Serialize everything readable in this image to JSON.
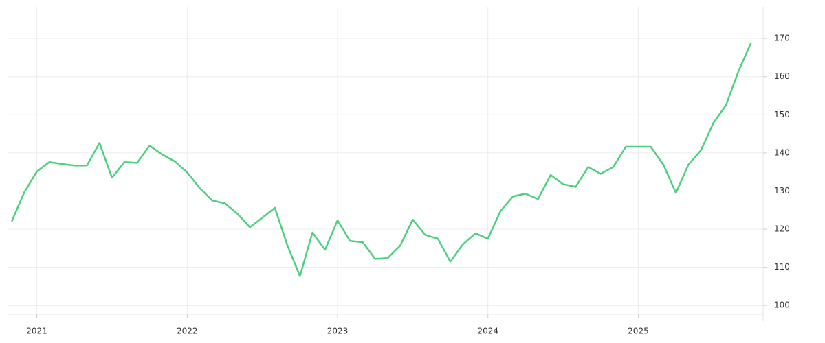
{
  "chart_data": {
    "type": "line",
    "x": [
      2020.833,
      2020.917,
      2021,
      2021.083,
      2021.167,
      2021.25,
      2021.333,
      2021.417,
      2021.5,
      2021.583,
      2021.667,
      2021.75,
      2021.833,
      2021.917,
      2022,
      2022.083,
      2022.167,
      2022.25,
      2022.333,
      2022.417,
      2022.5,
      2022.583,
      2022.667,
      2022.75,
      2022.833,
      2022.917,
      2023,
      2023.083,
      2023.167,
      2023.25,
      2023.333,
      2023.417,
      2023.5,
      2023.583,
      2023.667,
      2023.75,
      2023.833,
      2023.917,
      2024,
      2024.083,
      2024.167,
      2024.25,
      2024.333,
      2024.417,
      2024.5,
      2024.583,
      2024.667,
      2024.75,
      2024.833,
      2024.917,
      2025,
      2025.083,
      2025.167,
      2025.25,
      2025.333,
      2025.417,
      2025.5,
      2025.583,
      2025.667,
      2025.75
    ],
    "values": [
      122.0,
      129.7,
      135.1,
      137.6,
      137.1,
      136.7,
      136.7,
      142.6,
      133.5,
      137.6,
      137.4,
      141.9,
      139.6,
      137.8,
      134.9,
      130.8,
      127.5,
      126.8,
      124.1,
      120.5,
      123.0,
      125.6,
      115.7,
      107.7,
      119.1,
      114.6,
      122.3,
      116.9,
      116.6,
      112.2,
      112.4,
      115.7,
      122.5,
      118.5,
      117.5,
      111.5,
      116.0,
      118.9,
      117.5,
      124.7,
      128.6,
      129.3,
      127.9,
      134.2,
      131.8,
      131.1,
      136.3,
      134.5,
      136.3,
      141.6,
      141.6,
      141.6,
      136.9,
      129.5,
      136.9,
      140.7,
      147.9,
      152.5,
      161.5,
      168.9
    ],
    "color": "#4cd07d",
    "xlim": [
      2020.81,
      2025.83
    ],
    "xticks": [
      2021,
      2022,
      2023,
      2024,
      2025
    ],
    "ylim": [
      97.7,
      178.3
    ],
    "yticks": [
      100,
      110,
      120,
      130,
      140,
      150,
      160,
      170
    ],
    "grid": true
  }
}
